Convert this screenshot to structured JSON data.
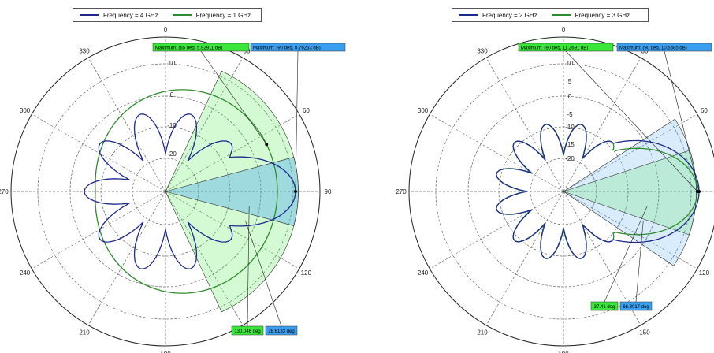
{
  "chart_data": [
    {
      "type": "polar",
      "legend_position": "top",
      "grid": true,
      "series": [
        {
          "name": "Frequency = 4 GHz",
          "color": "#1e2a8c"
        },
        {
          "name": "Frequency = 1 GHz",
          "color": "#2e8b2e"
        }
      ],
      "angle_ticks": [
        "0",
        "30",
        "60",
        "90",
        "120",
        "150",
        "180",
        "210",
        "240",
        "270",
        "300",
        "330"
      ],
      "radial_ticks": [
        "10",
        "0",
        "-10",
        "-20"
      ],
      "radial_range": [
        -40,
        10
      ],
      "maxima": [
        {
          "label": "Maximum: (65 deg, 5.92911 dB)",
          "angle_deg": 65,
          "value_db": 5.92911,
          "color": "#39e639"
        },
        {
          "label": "Maximum: (90 deg, 8.76253 dB)",
          "angle_deg": 90,
          "value_db": 8.76253,
          "color": "#3a9ff0"
        }
      ],
      "beamwidths": [
        {
          "label": "130.046 deg",
          "value": 130.046,
          "color": "#39e639"
        },
        {
          "label": "28.6133 deg",
          "value": 28.6133,
          "color": "#3a9ff0"
        }
      ]
    },
    {
      "type": "polar",
      "legend_position": "top",
      "grid": true,
      "series": [
        {
          "name": "Frequency = 2 GHz",
          "color": "#1e2a8c"
        },
        {
          "name": "Frequency = 3 GHz",
          "color": "#2e8b2e"
        }
      ],
      "angle_ticks": [
        "0",
        "30",
        "60",
        "90",
        "120",
        "150",
        "180",
        "210",
        "240",
        "270",
        "300",
        "330"
      ],
      "radial_ticks": [
        "10",
        "5",
        "0",
        "-5",
        "-10",
        "-15",
        "-20"
      ],
      "radial_range": [
        -30,
        12
      ],
      "maxima": [
        {
          "label": "Maximum: (90 deg, 11.2691 dB)",
          "angle_deg": 90,
          "value_db": 11.2691,
          "color": "#39e639"
        },
        {
          "label": "Maximum: (90 deg, 10.5585 dB)",
          "angle_deg": 90,
          "value_db": 10.5585,
          "color": "#3a9ff0"
        }
      ],
      "beamwidths": [
        {
          "label": "37.41 deg",
          "value": 37.41,
          "color": "#39e639"
        },
        {
          "label": "66.3017 deg",
          "value": 66.3017,
          "color": "#3a9ff0"
        }
      ]
    }
  ]
}
